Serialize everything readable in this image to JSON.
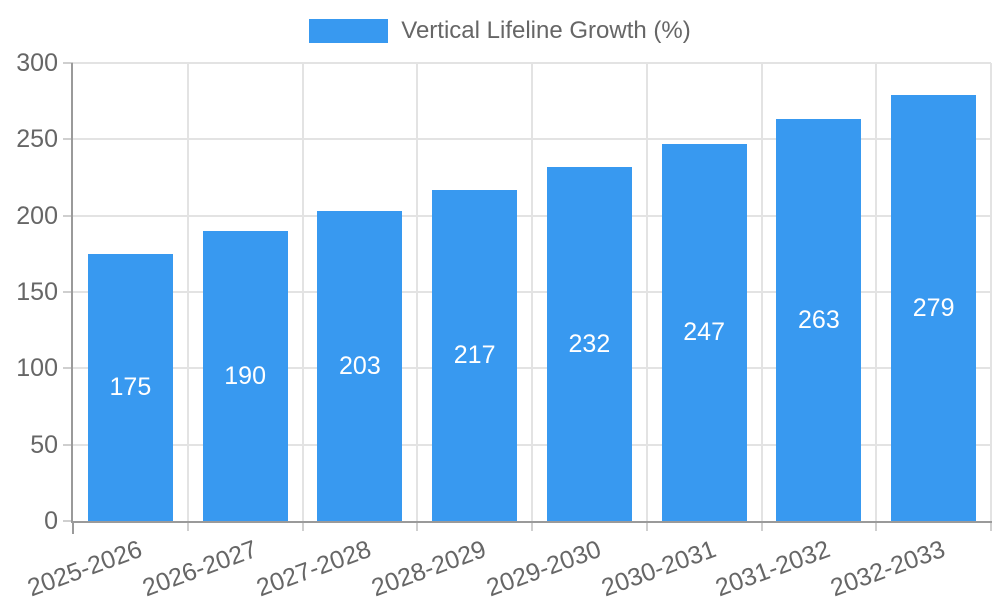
{
  "chart_data": {
    "type": "bar",
    "title": "",
    "legend": "Vertical Lifeline Growth (%)",
    "legend_position": "top-center",
    "categories": [
      "2025-2026",
      "2026-2027",
      "2027-2028",
      "2028-2029",
      "2029-2030",
      "2030-2031",
      "2031-2032",
      "2032-2033"
    ],
    "series": [
      {
        "name": "Vertical Lifeline Growth (%)",
        "values": [
          175,
          190,
          203,
          217,
          232,
          247,
          263,
          279
        ]
      }
    ],
    "xlabel": "",
    "ylabel": "",
    "ylim": [
      0,
      300
    ],
    "yticks": [
      0,
      50,
      100,
      150,
      200,
      250,
      300
    ],
    "grid": true,
    "value_labels": "inside-center",
    "x_label_rotation_deg": -20,
    "colors": {
      "bar": "#3899f0",
      "value_label": "#ffffff",
      "axis_text": "#666666",
      "gridline": "#e3e3e3",
      "tick": "#cfcfcf",
      "axis_line": "#9a9a9a",
      "background": "#ffffff"
    }
  }
}
